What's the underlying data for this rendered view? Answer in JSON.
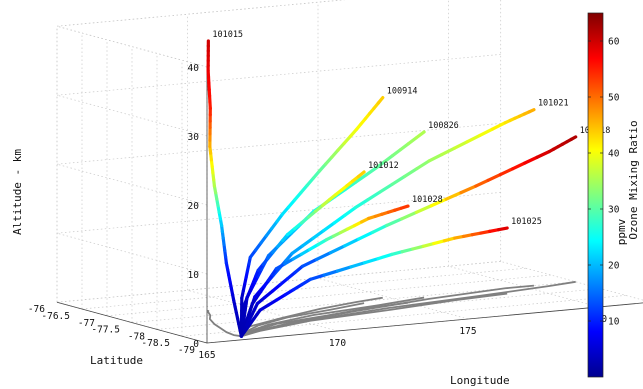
{
  "chart_data": {
    "type": "line",
    "subtype": "3d-trajectory",
    "xlabel": "Longitude",
    "ylabel": "Latitude",
    "zlabel": "Altitude - km",
    "colorbar_label": "Ozone Mixing Ratio",
    "colorbar_unit": "ppmv",
    "colormap": "jet",
    "colorbar_range": [
      0,
      65
    ],
    "colorbar_ticks": [
      "10",
      "20",
      "30",
      "40",
      "50",
      "60"
    ],
    "xlim": [
      165,
      182
    ],
    "ylim": [
      -79,
      -76
    ],
    "zlim": [
      0,
      40
    ],
    "xticks": [
      "165",
      "170",
      "175",
      "180"
    ],
    "yticks": [
      "-76",
      "-76.5",
      "-77",
      "-77.5",
      "-78",
      "-78.5",
      "-79"
    ],
    "zticks": [
      "0",
      "10",
      "20",
      "30",
      "40"
    ],
    "grid": true,
    "projection_color": "#808080",
    "series": [
      {
        "name": "101015",
        "points": [
          {
            "lon": 166.7,
            "lat": -78.8,
            "alt": 0,
            "o3": 3
          },
          {
            "lon": 166.6,
            "lat": -78.7,
            "alt": 5,
            "o3": 5
          },
          {
            "lon": 166.7,
            "lat": -78.5,
            "alt": 10,
            "o3": 10
          },
          {
            "lon": 166.9,
            "lat": -78.3,
            "alt": 15,
            "o3": 20
          },
          {
            "lon": 167.2,
            "lat": -78.0,
            "alt": 20,
            "o3": 35
          },
          {
            "lon": 167.6,
            "lat": -77.7,
            "alt": 25,
            "o3": 45
          },
          {
            "lon": 168.0,
            "lat": -77.5,
            "alt": 30,
            "o3": 55
          },
          {
            "lon": 168.3,
            "lat": -77.3,
            "alt": 35,
            "o3": 58
          },
          {
            "lon": 168.5,
            "lat": -77.2,
            "alt": 39,
            "o3": 60
          }
        ]
      },
      {
        "name": "100914",
        "points": [
          {
            "lon": 166.7,
            "lat": -78.8,
            "alt": 0,
            "o3": 3
          },
          {
            "lon": 167.1,
            "lat": -78.6,
            "alt": 5,
            "o3": 4
          },
          {
            "lon": 168.0,
            "lat": -78.3,
            "alt": 10,
            "o3": 12
          },
          {
            "lon": 169.8,
            "lat": -78.0,
            "alt": 15,
            "o3": 22
          },
          {
            "lon": 171.8,
            "lat": -77.7,
            "alt": 20,
            "o3": 30
          },
          {
            "lon": 173.6,
            "lat": -77.5,
            "alt": 25,
            "o3": 40
          },
          {
            "lon": 174.8,
            "lat": -77.4,
            "alt": 29,
            "o3": 44
          }
        ]
      },
      {
        "name": "100826",
        "points": [
          {
            "lon": 166.7,
            "lat": -78.8,
            "alt": 0,
            "o3": 3
          },
          {
            "lon": 167.3,
            "lat": -78.6,
            "alt": 5,
            "o3": 5
          },
          {
            "lon": 168.7,
            "lat": -78.3,
            "alt": 10,
            "o3": 15
          },
          {
            "lon": 171.0,
            "lat": -78.0,
            "alt": 15,
            "o3": 24
          },
          {
            "lon": 173.8,
            "lat": -77.8,
            "alt": 20,
            "o3": 30
          },
          {
            "lon": 176.0,
            "lat": -77.6,
            "alt": 24,
            "o3": 36
          }
        ]
      },
      {
        "name": "101012",
        "points": [
          {
            "lon": 166.7,
            "lat": -78.8,
            "alt": 0,
            "o3": 3
          },
          {
            "lon": 167.2,
            "lat": -78.6,
            "alt": 4,
            "o3": 4
          },
          {
            "lon": 168.3,
            "lat": -78.3,
            "alt": 8,
            "o3": 10
          },
          {
            "lon": 170.0,
            "lat": -78.0,
            "alt": 12,
            "o3": 22
          },
          {
            "lon": 172.0,
            "lat": -77.8,
            "alt": 16,
            "o3": 38
          },
          {
            "lon": 173.7,
            "lat": -77.6,
            "alt": 19,
            "o3": 44
          }
        ]
      },
      {
        "name": "101021",
        "points": [
          {
            "lon": 166.7,
            "lat": -78.8,
            "alt": 0,
            "o3": 3
          },
          {
            "lon": 167.6,
            "lat": -78.6,
            "alt": 5,
            "o3": 6
          },
          {
            "lon": 169.6,
            "lat": -78.3,
            "alt": 10,
            "o3": 18
          },
          {
            "lon": 172.6,
            "lat": -78.0,
            "alt": 15,
            "o3": 26
          },
          {
            "lon": 176.0,
            "lat": -77.7,
            "alt": 20,
            "o3": 34
          },
          {
            "lon": 179.3,
            "lat": -77.5,
            "alt": 24,
            "o3": 42
          },
          {
            "lon": 180.4,
            "lat": -77.5,
            "alt": 25.5,
            "o3": 46
          }
        ]
      },
      {
        "name": "101028",
        "points": [
          {
            "lon": 166.7,
            "lat": -78.8,
            "alt": 0,
            "o3": 3
          },
          {
            "lon": 167.5,
            "lat": -78.6,
            "alt": 4,
            "o3": 4
          },
          {
            "lon": 169.0,
            "lat": -78.3,
            "alt": 8,
            "o3": 12
          },
          {
            "lon": 171.3,
            "lat": -78.1,
            "alt": 11,
            "o3": 28
          },
          {
            "lon": 173.3,
            "lat": -77.9,
            "alt": 13,
            "o3": 46
          },
          {
            "lon": 175.0,
            "lat": -77.8,
            "alt": 14,
            "o3": 54
          }
        ]
      },
      {
        "name": "101018",
        "points": [
          {
            "lon": 166.7,
            "lat": -78.8,
            "alt": 0,
            "o3": 3
          },
          {
            "lon": 167.7,
            "lat": -78.6,
            "alt": 4,
            "o3": 5
          },
          {
            "lon": 170.0,
            "lat": -78.3,
            "alt": 8,
            "o3": 12
          },
          {
            "lon": 173.8,
            "lat": -78.0,
            "alt": 12,
            "o3": 28
          },
          {
            "lon": 177.6,
            "lat": -77.8,
            "alt": 16,
            "o3": 50
          },
          {
            "lon": 180.8,
            "lat": -77.6,
            "alt": 19.5,
            "o3": 60
          },
          {
            "lon": 182.0,
            "lat": -77.5,
            "alt": 21,
            "o3": 62
          }
        ]
      },
      {
        "name": "101025",
        "points": [
          {
            "lon": 166.7,
            "lat": -78.8,
            "alt": 0,
            "o3": 3
          },
          {
            "lon": 167.8,
            "lat": -78.6,
            "alt": 3,
            "o3": 5
          },
          {
            "lon": 170.3,
            "lat": -78.3,
            "alt": 6,
            "o3": 12
          },
          {
            "lon": 173.8,
            "lat": -78.1,
            "alt": 8,
            "o3": 26
          },
          {
            "lon": 176.6,
            "lat": -77.9,
            "alt": 9,
            "o3": 45
          },
          {
            "lon": 178.8,
            "lat": -77.8,
            "alt": 9.5,
            "o3": 60
          }
        ]
      }
    ]
  }
}
